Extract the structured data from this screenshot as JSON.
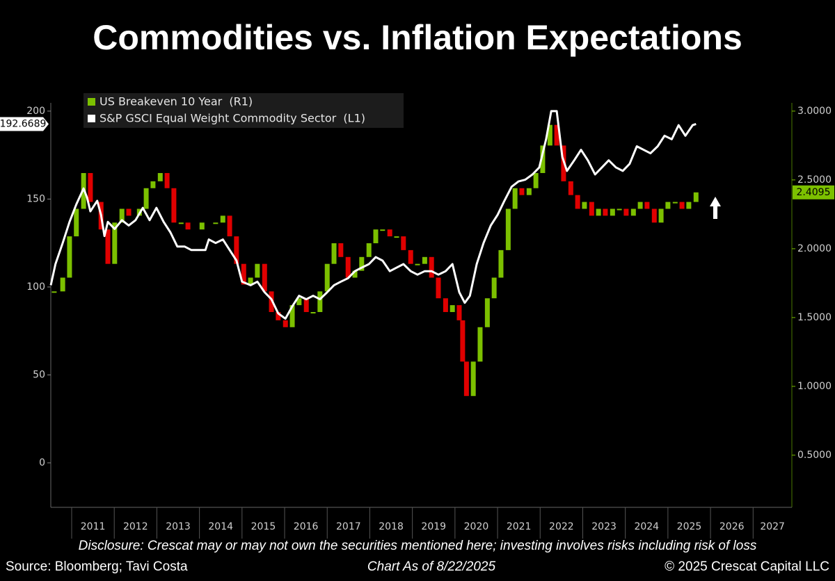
{
  "chart_data": {
    "type": "line",
    "title": "Commodities vs. Inflation Expectations",
    "xlim": [
      2010.51,
      2027.91
    ],
    "xticks": [
      2011,
      2012,
      2013,
      2014,
      2015,
      2016,
      2017,
      2018,
      2019,
      2020,
      2021,
      2022,
      2023,
      2024,
      2025,
      2026,
      2027
    ],
    "ylim": [
      -25.3,
      204.7
    ],
    "yticks": [
      0,
      50,
      100,
      150,
      200
    ],
    "y2lim": [
      0.121,
      3.06
    ],
    "y2ticks": [
      {
        "value": 0.5,
        "label": "0.5000"
      },
      {
        "value": 1,
        "label": "1.0000"
      },
      {
        "value": 1.5,
        "label": "1.5000"
      },
      {
        "value": 2,
        "label": "2.0000"
      },
      {
        "value": 2.5,
        "label": "2.5000"
      },
      {
        "value": 3,
        "label": "3.0000"
      }
    ],
    "series": [
      {
        "name": "US Breakeven 10 Year  (R1)",
        "type": "candlestick",
        "axis": "y2",
        "color": "#7cc000",
        "down_color": "#e00000",
        "x": [
          2010.59,
          2010.79,
          2010.95,
          2011.11,
          2011.28,
          2011.44,
          2011.69,
          2011.85,
          2012.01,
          2012.18,
          2012.34,
          2012.59,
          2012.75,
          2012.91,
          2013.08,
          2013.24,
          2013.4,
          2013.57,
          2013.73,
          2014.06,
          2014.38,
          2014.55,
          2014.71,
          2014.87,
          2015.04,
          2015.2,
          2015.36,
          2015.53,
          2015.69,
          2015.85,
          2016.02,
          2016.18,
          2016.34,
          2016.51,
          2016.67,
          2016.83,
          2017.0,
          2017.16,
          2017.32,
          2017.49,
          2017.65,
          2017.81,
          2017.98,
          2018.14,
          2018.3,
          2018.47,
          2018.63,
          2018.79,
          2018.96,
          2019.12,
          2019.29,
          2019.45,
          2019.61,
          2019.78,
          2019.94,
          2020.1,
          2020.18,
          2020.27,
          2020.43,
          2020.59,
          2020.76,
          2020.92,
          2021.08,
          2021.25,
          2021.41,
          2021.57,
          2021.74,
          2021.9,
          2022.06,
          2022.23,
          2022.39,
          2022.55,
          2022.72,
          2022.88,
          2023.04,
          2023.21,
          2023.37,
          2023.53,
          2023.7,
          2023.86,
          2024.02,
          2024.19,
          2024.35,
          2024.51,
          2024.68,
          2024.84,
          2025.0,
          2025.17,
          2025.33,
          2025.49,
          2025.66
        ],
        "values": [
          1.69,
          1.79,
          2.09,
          2.29,
          2.55,
          2.34,
          2.14,
          1.89,
          2.19,
          2.29,
          2.24,
          2.29,
          2.44,
          2.49,
          2.55,
          2.44,
          2.19,
          2.19,
          2.14,
          2.19,
          2.19,
          2.24,
          2.09,
          1.89,
          1.74,
          1.79,
          1.89,
          1.69,
          1.54,
          1.48,
          1.43,
          1.59,
          1.64,
          1.54,
          1.54,
          1.69,
          1.89,
          2.04,
          1.94,
          1.79,
          1.84,
          1.94,
          2.04,
          2.14,
          2.14,
          2.09,
          2.09,
          1.99,
          1.89,
          1.89,
          1.94,
          1.79,
          1.64,
          1.54,
          1.59,
          1.48,
          1.18,
          0.93,
          1.18,
          1.43,
          1.64,
          1.79,
          1.99,
          2.29,
          2.44,
          2.39,
          2.44,
          2.55,
          2.75,
          2.9,
          2.75,
          2.49,
          2.39,
          2.29,
          2.34,
          2.24,
          2.29,
          2.24,
          2.29,
          2.29,
          2.24,
          2.29,
          2.34,
          2.29,
          2.19,
          2.29,
          2.34,
          2.34,
          2.29,
          2.34,
          2.4095
        ]
      },
      {
        "name": "S&P GSCI Equal Weight Commodity Sector  (L1)",
        "type": "line",
        "color": "#ffffff",
        "x": [
          2010.51,
          2010.62,
          2010.79,
          2010.95,
          2011.11,
          2011.28,
          2011.36,
          2011.44,
          2011.6,
          2011.69,
          2011.77,
          2011.85,
          2012.01,
          2012.18,
          2012.34,
          2012.5,
          2012.67,
          2012.83,
          2012.99,
          2013.16,
          2013.32,
          2013.48,
          2013.65,
          2013.81,
          2013.97,
          2014.14,
          2014.22,
          2014.38,
          2014.55,
          2014.71,
          2014.87,
          2015.0,
          2015.2,
          2015.36,
          2015.53,
          2015.69,
          2015.85,
          2016.02,
          2016.18,
          2016.34,
          2016.51,
          2016.67,
          2016.83,
          2017.0,
          2017.16,
          2017.32,
          2017.49,
          2017.65,
          2017.81,
          2017.98,
          2018.14,
          2018.3,
          2018.47,
          2018.63,
          2018.79,
          2018.96,
          2019.12,
          2019.29,
          2019.45,
          2019.61,
          2019.78,
          2019.94,
          2020.02,
          2020.1,
          2020.23,
          2020.35,
          2020.51,
          2020.67,
          2020.84,
          2021.0,
          2021.16,
          2021.33,
          2021.49,
          2021.65,
          2021.82,
          2021.98,
          2022.14,
          2022.26,
          2022.39,
          2022.52,
          2022.63,
          2022.8,
          2022.96,
          2023.12,
          2023.29,
          2023.45,
          2023.61,
          2023.78,
          2023.94,
          2024.1,
          2024.27,
          2024.43,
          2024.59,
          2024.76,
          2024.92,
          2025.09,
          2025.25,
          2025.41,
          2025.58,
          2025.66
        ],
        "values": [
          101,
          113,
          125,
          137,
          147,
          156,
          151,
          143,
          149,
          141,
          129,
          137,
          133,
          138,
          135,
          138,
          145,
          138,
          145,
          137,
          131,
          123,
          123,
          121,
          121,
          121,
          127,
          125,
          127,
          121,
          115,
          103,
          101,
          103,
          97,
          93,
          85,
          82,
          89,
          95,
          93,
          95,
          93,
          97,
          101,
          103,
          105,
          109,
          111,
          113,
          117,
          115,
          109,
          111,
          113,
          109,
          107,
          109,
          109,
          107,
          109,
          113,
          105,
          97,
          91,
          95,
          113,
          125,
          135,
          141,
          149,
          157,
          160,
          161,
          164,
          168,
          184,
          200,
          200,
          174,
          166,
          172,
          178,
          172,
          164,
          168,
          172,
          168,
          166,
          170,
          180,
          178,
          176,
          180,
          186,
          184,
          192,
          186,
          192,
          192.6689
        ]
      }
    ],
    "disclosure": "Disclosure: Crescat may or may not own the securities mentioned here; investing involves risks including risk of loss",
    "source": "Source: Bloomberg; Tavi Costa",
    "note": "Chart As of 8/22/2025",
    "copyright": "© 2025 Crescat Capital LLC"
  }
}
